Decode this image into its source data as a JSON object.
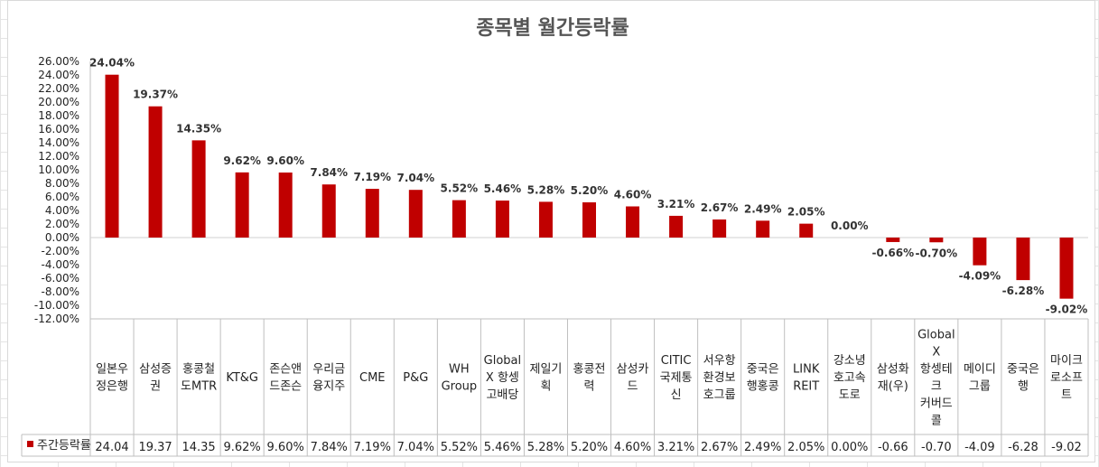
{
  "chart_data": {
    "type": "bar",
    "title": "종목별 월간등락률",
    "series": [
      {
        "name": "주간등락률",
        "color": "#c00000",
        "values": [
          24.04,
          19.37,
          14.35,
          9.62,
          9.6,
          7.84,
          7.19,
          7.04,
          5.52,
          5.46,
          5.28,
          5.2,
          4.6,
          3.21,
          2.67,
          2.49,
          2.05,
          0.0,
          -0.66,
          -0.7,
          -4.09,
          -6.28,
          -9.02
        ]
      }
    ],
    "categories": [
      [
        "일본우",
        "정은행"
      ],
      [
        "삼성증",
        "권"
      ],
      [
        "홍콩철",
        "도MTR"
      ],
      [
        "KT&G"
      ],
      [
        "존슨앤",
        "드존슨"
      ],
      [
        "우리금",
        "융지주"
      ],
      [
        "CME"
      ],
      [
        "P&G"
      ],
      [
        "WH",
        "Group"
      ],
      [
        "Global",
        "X 항셍",
        "고배당"
      ],
      [
        "제일기",
        "획"
      ],
      [
        "홍콩전",
        "력"
      ],
      [
        "삼성카",
        "드"
      ],
      [
        "CITIC",
        "국제통",
        "신"
      ],
      [
        "서우항",
        "환경보",
        "호그룹"
      ],
      [
        "중국은",
        "행홍콩"
      ],
      [
        "LINK",
        "REIT"
      ],
      [
        "강소녕",
        "호고속",
        "도로"
      ],
      [
        "삼성화",
        "재(우)"
      ],
      [
        "Global",
        "X",
        "항셍테",
        "크",
        "커버드",
        "콜"
      ],
      [
        "메이디",
        "그룹"
      ],
      [
        "중국은",
        "행"
      ],
      [
        "마이크",
        "로소프",
        "트"
      ]
    ],
    "data_labels": [
      "24.04%",
      "19.37%",
      "14.35%",
      "9.62%",
      "9.60%",
      "7.84%",
      "7.19%",
      "7.04%",
      "5.52%",
      "5.46%",
      "5.28%",
      "5.20%",
      "4.60%",
      "3.21%",
      "2.67%",
      "2.49%",
      "2.05%",
      "0.00%",
      "-0.66%",
      "-0.70%",
      "-4.09%",
      "-6.28%",
      "-9.02%"
    ],
    "table_values": [
      "24.04",
      "19.37",
      "14.35",
      "9.62%",
      "9.60%",
      "7.84%",
      "7.19%",
      "7.04%",
      "5.52%",
      "5.46%",
      "5.28%",
      "5.20%",
      "4.60%",
      "3.21%",
      "2.67%",
      "2.49%",
      "2.05%",
      "0.00%",
      "-0.66",
      "-0.70",
      "-4.09",
      "-6.28",
      "-9.02"
    ],
    "ylim": [
      -12,
      26
    ],
    "yticks": [
      "26.00%",
      "24.00%",
      "22.00%",
      "20.00%",
      "18.00%",
      "16.00%",
      "14.00%",
      "12.00%",
      "10.00%",
      "8.00%",
      "6.00%",
      "4.00%",
      "2.00%",
      "0.00%",
      "-2.00%",
      "-4.00%",
      "-6.00%",
      "-8.00%",
      "-10.00%",
      "-12.00%"
    ],
    "grid": true,
    "legend": "data-table"
  }
}
